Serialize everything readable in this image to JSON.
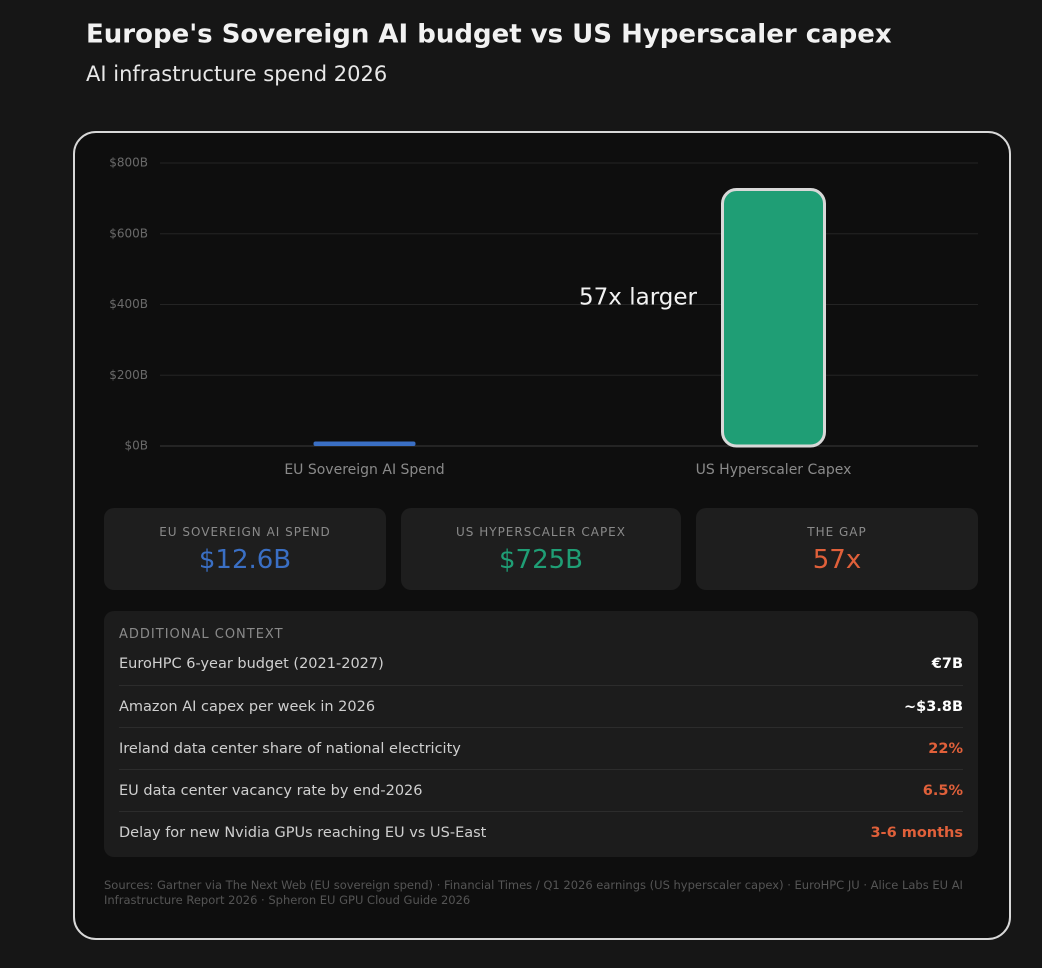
{
  "chart_data": {
    "type": "bar",
    "title": "Europe's Sovereign AI budget vs US Hyperscaler capex",
    "subtitle": "AI infrastructure spend 2026",
    "categories": [
      "EU Sovereign AI Spend",
      "US Hyperscaler Capex"
    ],
    "values": [
      12.6,
      725
    ],
    "colors": [
      "#3a6fc4",
      "#1f9e75"
    ],
    "annotation": "57x larger",
    "ylim": [
      0,
      800
    ],
    "yticks": [
      {
        "value": 0,
        "label": "$0B"
      },
      {
        "value": 200,
        "label": "$200B"
      },
      {
        "value": 400,
        "label": "$400B"
      },
      {
        "value": 600,
        "label": "$600B"
      },
      {
        "value": 800,
        "label": "$800B"
      }
    ],
    "grid": true
  },
  "stats": [
    {
      "label": "EU SOVEREIGN AI SPEND",
      "value": "$12.6B",
      "color": "#3a6fc4"
    },
    {
      "label": "US HYPERSCALER CAPEX",
      "value": "$725B",
      "color": "#1f9e75"
    },
    {
      "label": "THE GAP",
      "value": "57x",
      "color": "#e0603a"
    }
  ],
  "context": {
    "title": "ADDITIONAL CONTEXT",
    "rows": [
      {
        "label": "EuroHPC 6-year budget (2021-2027)",
        "value": "€7B",
        "color": "#ffffff"
      },
      {
        "label": "Amazon AI capex per week in 2026",
        "value": "~$3.8B",
        "color": "#ffffff"
      },
      {
        "label": "Ireland data center share of national electricity",
        "value": "22%",
        "color": "#e0603a"
      },
      {
        "label": "EU data center vacancy rate by end-2026",
        "value": "6.5%",
        "color": "#e0603a"
      },
      {
        "label": "Delay for new Nvidia GPUs reaching EU vs US-East",
        "value": "3-6 months",
        "color": "#e0603a"
      }
    ]
  },
  "sources": "Sources: Gartner via The Next Web (EU sovereign spend) · Financial Times / Q1 2026 earnings (US hyperscaler capex) · EuroHPC JU · Alice Labs EU AI Infrastructure Report 2026 · Spheron EU GPU Cloud Guide 2026"
}
